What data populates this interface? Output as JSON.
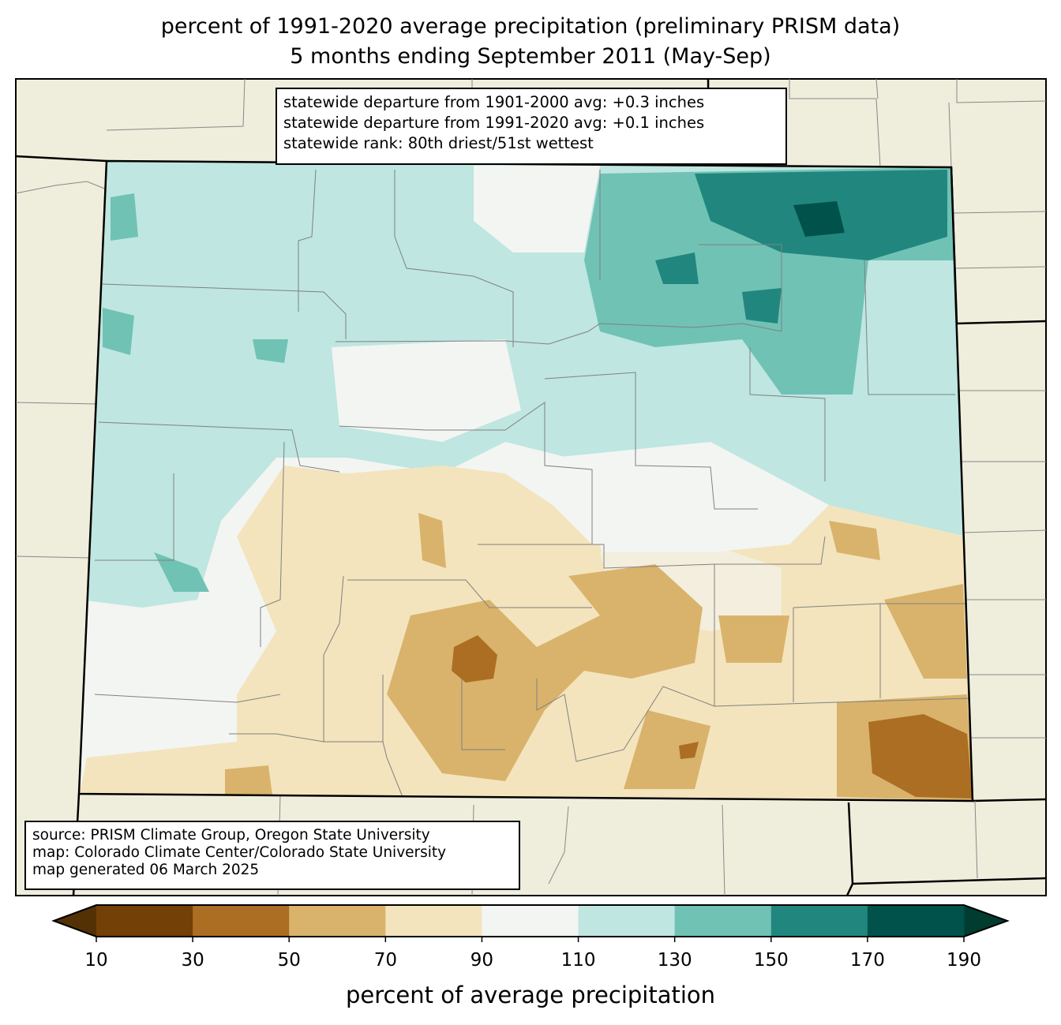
{
  "title": {
    "line1": "percent of 1991-2020 average precipitation (preliminary PRISM data)",
    "line2": "5 months ending September 2011 (May-Sep)"
  },
  "stats": {
    "line1": "statewide departure from 1901-2000 avg: +0.3 inches",
    "line2": "statewide departure from 1991-2020 avg: +0.1 inches",
    "line3": "statewide rank: 80th driest/51st wettest"
  },
  "source": {
    "line1": "source: PRISM Climate Group, Oregon State University",
    "line2": "map: Colorado Climate Center/Colorado State University",
    "line3": "map generated 06 March 2025"
  },
  "colorbar": {
    "label": "percent of average precipitation",
    "ticks": [
      "10",
      "30",
      "50",
      "70",
      "90",
      "110",
      "130",
      "150",
      "170",
      "190"
    ],
    "under_color": "#543005",
    "over_color": "#003c30",
    "colors": [
      "#734008",
      "#ab6e22",
      "#d9b36c",
      "#f3e4bd",
      "#f3f5f3",
      "#bfe6e0",
      "#70c2b5",
      "#21877e",
      "#00524a"
    ]
  },
  "map_colors": {
    "background_land": "#efeddc",
    "county_lines": "#808080"
  }
}
